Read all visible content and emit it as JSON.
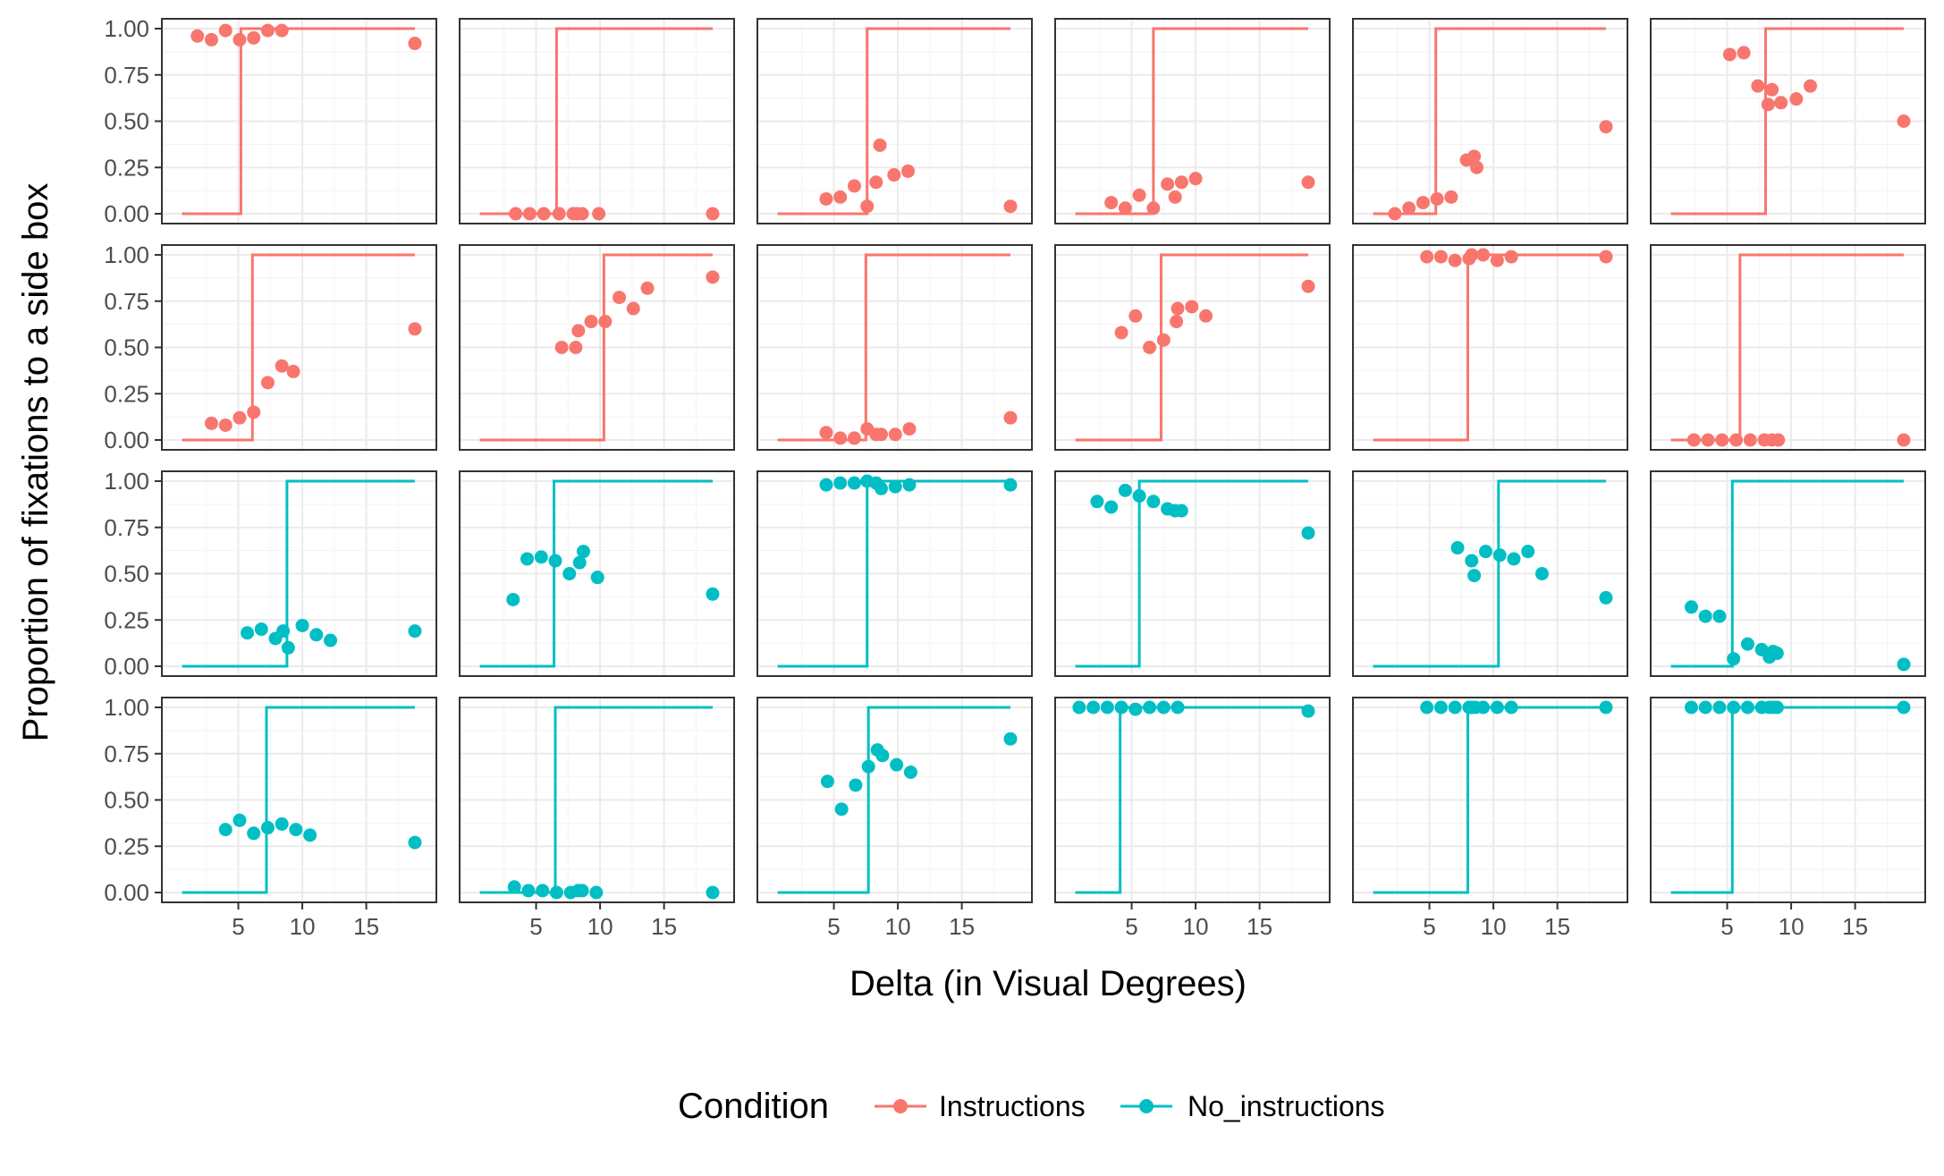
{
  "chart_data": {
    "type": "scatter",
    "layout": "facet grid, 4 rows x 6 columns",
    "xlabel": "Delta (in Visual Degrees)",
    "ylabel": "Proportion of fixations to a side box",
    "xticks": [
      5,
      10,
      15
    ],
    "xlim": [
      0,
      19.5
    ],
    "yticks": [
      "0.00",
      "0.25",
      "0.50",
      "0.75",
      "1.00"
    ],
    "ylim": [
      0,
      1
    ],
    "grid": true,
    "legend": {
      "title": "Condition",
      "position": "bottom",
      "items": [
        {
          "name": "Instructions",
          "color": "#F8766D"
        },
        {
          "name": "No_instructions",
          "color": "#00BFC4"
        }
      ]
    },
    "panels": [
      {
        "condition": "Instructions",
        "step_x": 5.2,
        "points": [
          [
            1.8,
            0.96
          ],
          [
            2.9,
            0.94
          ],
          [
            4.0,
            0.99
          ],
          [
            5.1,
            0.94
          ],
          [
            6.2,
            0.95
          ],
          [
            7.3,
            0.99
          ],
          [
            8.4,
            0.99
          ],
          [
            18.8,
            0.92
          ]
        ]
      },
      {
        "condition": "Instructions",
        "step_x": 6.6,
        "points": [
          [
            3.4,
            0.0
          ],
          [
            4.5,
            0.0
          ],
          [
            5.6,
            0.0
          ],
          [
            6.8,
            0.0
          ],
          [
            7.9,
            0.0
          ],
          [
            8.2,
            0.0
          ],
          [
            8.6,
            0.0
          ],
          [
            9.9,
            0.0
          ],
          [
            18.8,
            0.0
          ]
        ]
      },
      {
        "condition": "Instructions",
        "step_x": 7.6,
        "points": [
          [
            4.4,
            0.08
          ],
          [
            5.5,
            0.09
          ],
          [
            6.6,
            0.15
          ],
          [
            7.6,
            0.04
          ],
          [
            8.3,
            0.17
          ],
          [
            8.6,
            0.37
          ],
          [
            9.7,
            0.21
          ],
          [
            10.8,
            0.23
          ],
          [
            18.8,
            0.04
          ]
        ]
      },
      {
        "condition": "Instructions",
        "step_x": 6.7,
        "points": [
          [
            3.4,
            0.06
          ],
          [
            4.5,
            0.03
          ],
          [
            5.6,
            0.1
          ],
          [
            6.7,
            0.03
          ],
          [
            7.8,
            0.16
          ],
          [
            8.4,
            0.09
          ],
          [
            8.9,
            0.17
          ],
          [
            10.0,
            0.19
          ],
          [
            18.8,
            0.17
          ]
        ]
      },
      {
        "condition": "Instructions",
        "step_x": 5.5,
        "points": [
          [
            2.3,
            0.0
          ],
          [
            3.4,
            0.03
          ],
          [
            4.5,
            0.06
          ],
          [
            5.6,
            0.08
          ],
          [
            6.7,
            0.09
          ],
          [
            7.9,
            0.29
          ],
          [
            8.5,
            0.31
          ],
          [
            8.7,
            0.25
          ],
          [
            18.8,
            0.47
          ]
        ]
      },
      {
        "condition": "Instructions",
        "step_x": 8.0,
        "points": [
          [
            5.2,
            0.86
          ],
          [
            6.3,
            0.87
          ],
          [
            7.4,
            0.69
          ],
          [
            8.2,
            0.59
          ],
          [
            8.5,
            0.67
          ],
          [
            9.2,
            0.6
          ],
          [
            10.4,
            0.62
          ],
          [
            11.5,
            0.69
          ],
          [
            18.8,
            0.5
          ]
        ]
      },
      {
        "condition": "Instructions",
        "step_x": 6.1,
        "points": [
          [
            2.9,
            0.09
          ],
          [
            4.0,
            0.08
          ],
          [
            5.1,
            0.12
          ],
          [
            6.2,
            0.15
          ],
          [
            7.3,
            0.31
          ],
          [
            8.4,
            0.4
          ],
          [
            9.3,
            0.37
          ],
          [
            18.8,
            0.6
          ]
        ]
      },
      {
        "condition": "Instructions",
        "step_x": 10.3,
        "points": [
          [
            7.0,
            0.5
          ],
          [
            8.1,
            0.5
          ],
          [
            8.3,
            0.59
          ],
          [
            9.3,
            0.64
          ],
          [
            10.4,
            0.64
          ],
          [
            11.5,
            0.77
          ],
          [
            12.6,
            0.71
          ],
          [
            13.7,
            0.82
          ],
          [
            18.8,
            0.88
          ]
        ]
      },
      {
        "condition": "Instructions",
        "step_x": 7.5,
        "points": [
          [
            4.4,
            0.04
          ],
          [
            5.5,
            0.01
          ],
          [
            6.6,
            0.01
          ],
          [
            7.6,
            0.06
          ],
          [
            8.3,
            0.03
          ],
          [
            8.7,
            0.03
          ],
          [
            9.8,
            0.03
          ],
          [
            10.9,
            0.06
          ],
          [
            18.8,
            0.12
          ]
        ]
      },
      {
        "condition": "Instructions",
        "step_x": 7.3,
        "points": [
          [
            4.2,
            0.58
          ],
          [
            5.3,
            0.67
          ],
          [
            6.4,
            0.5
          ],
          [
            7.5,
            0.54
          ],
          [
            8.5,
            0.64
          ],
          [
            8.6,
            0.71
          ],
          [
            9.7,
            0.72
          ],
          [
            10.8,
            0.67
          ],
          [
            18.8,
            0.83
          ]
        ]
      },
      {
        "condition": "Instructions",
        "step_x": 8.0,
        "points": [
          [
            4.8,
            0.99
          ],
          [
            5.9,
            0.99
          ],
          [
            7.0,
            0.97
          ],
          [
            8.1,
            0.98
          ],
          [
            8.3,
            1.0
          ],
          [
            9.2,
            1.0
          ],
          [
            10.3,
            0.97
          ],
          [
            11.4,
            0.99
          ],
          [
            18.8,
            0.99
          ]
        ]
      },
      {
        "condition": "Instructions",
        "step_x": 6.0,
        "points": [
          [
            2.4,
            0.0
          ],
          [
            3.5,
            0.0
          ],
          [
            4.6,
            0.0
          ],
          [
            5.7,
            0.0
          ],
          [
            6.8,
            0.0
          ],
          [
            7.9,
            0.0
          ],
          [
            8.5,
            0.0
          ],
          [
            9.0,
            0.0
          ],
          [
            18.8,
            0.0
          ]
        ]
      },
      {
        "condition": "No_instructions",
        "step_x": 8.8,
        "points": [
          [
            5.7,
            0.18
          ],
          [
            6.8,
            0.2
          ],
          [
            7.9,
            0.15
          ],
          [
            8.5,
            0.19
          ],
          [
            8.9,
            0.1
          ],
          [
            10.0,
            0.22
          ],
          [
            11.1,
            0.17
          ],
          [
            12.2,
            0.14
          ],
          [
            18.8,
            0.19
          ]
        ]
      },
      {
        "condition": "No_instructions",
        "step_x": 6.4,
        "points": [
          [
            3.2,
            0.36
          ],
          [
            4.3,
            0.58
          ],
          [
            5.4,
            0.59
          ],
          [
            6.5,
            0.57
          ],
          [
            7.6,
            0.5
          ],
          [
            8.4,
            0.56
          ],
          [
            8.7,
            0.62
          ],
          [
            9.8,
            0.48
          ],
          [
            18.8,
            0.39
          ]
        ]
      },
      {
        "condition": "No_instructions",
        "step_x": 7.6,
        "points": [
          [
            4.4,
            0.98
          ],
          [
            5.5,
            0.99
          ],
          [
            6.6,
            0.99
          ],
          [
            7.6,
            1.0
          ],
          [
            8.3,
            0.99
          ],
          [
            8.7,
            0.96
          ],
          [
            9.8,
            0.97
          ],
          [
            10.9,
            0.98
          ],
          [
            18.8,
            0.98
          ]
        ]
      },
      {
        "condition": "No_instructions",
        "step_x": 5.6,
        "points": [
          [
            2.3,
            0.89
          ],
          [
            3.4,
            0.86
          ],
          [
            4.5,
            0.95
          ],
          [
            5.6,
            0.92
          ],
          [
            6.7,
            0.89
          ],
          [
            7.8,
            0.85
          ],
          [
            8.4,
            0.84
          ],
          [
            8.9,
            0.84
          ],
          [
            18.8,
            0.72
          ]
        ]
      },
      {
        "condition": "No_instructions",
        "step_x": 10.4,
        "points": [
          [
            7.2,
            0.64
          ],
          [
            8.3,
            0.57
          ],
          [
            8.5,
            0.49
          ],
          [
            9.4,
            0.62
          ],
          [
            10.5,
            0.6
          ],
          [
            11.6,
            0.58
          ],
          [
            12.7,
            0.62
          ],
          [
            13.8,
            0.5
          ],
          [
            18.8,
            0.37
          ]
        ]
      },
      {
        "condition": "No_instructions",
        "step_x": 5.4,
        "points": [
          [
            2.2,
            0.32
          ],
          [
            3.3,
            0.27
          ],
          [
            4.4,
            0.27
          ],
          [
            5.5,
            0.04
          ],
          [
            6.6,
            0.12
          ],
          [
            7.7,
            0.09
          ],
          [
            8.3,
            0.05
          ],
          [
            8.6,
            0.08
          ],
          [
            8.9,
            0.07
          ],
          [
            18.8,
            0.01
          ]
        ]
      },
      {
        "condition": "No_instructions",
        "step_x": 7.2,
        "points": [
          [
            4.0,
            0.34
          ],
          [
            5.1,
            0.39
          ],
          [
            6.2,
            0.32
          ],
          [
            7.3,
            0.35
          ],
          [
            8.4,
            0.37
          ],
          [
            9.5,
            0.34
          ],
          [
            10.6,
            0.31
          ],
          [
            18.8,
            0.27
          ]
        ]
      },
      {
        "condition": "No_instructions",
        "step_x": 6.5,
        "points": [
          [
            3.3,
            0.03
          ],
          [
            4.4,
            0.01
          ],
          [
            5.5,
            0.01
          ],
          [
            6.6,
            0.0
          ],
          [
            7.7,
            0.0
          ],
          [
            8.3,
            0.01
          ],
          [
            8.6,
            0.01
          ],
          [
            9.7,
            0.0
          ],
          [
            18.8,
            0.0
          ]
        ]
      },
      {
        "condition": "No_instructions",
        "step_x": 7.7,
        "points": [
          [
            4.5,
            0.6
          ],
          [
            5.6,
            0.45
          ],
          [
            6.7,
            0.58
          ],
          [
            7.7,
            0.68
          ],
          [
            8.4,
            0.77
          ],
          [
            8.8,
            0.74
          ],
          [
            9.9,
            0.69
          ],
          [
            11.0,
            0.65
          ],
          [
            18.8,
            0.83
          ]
        ]
      },
      {
        "condition": "No_instructions",
        "step_x": 4.1,
        "points": [
          [
            0.9,
            1.0
          ],
          [
            2.0,
            1.0
          ],
          [
            3.1,
            1.0
          ],
          [
            4.2,
            1.0
          ],
          [
            5.3,
            0.99
          ],
          [
            6.4,
            1.0
          ],
          [
            7.5,
            1.0
          ],
          [
            8.6,
            1.0
          ],
          [
            18.8,
            0.98
          ]
        ]
      },
      {
        "condition": "No_instructions",
        "step_x": 8.0,
        "points": [
          [
            4.8,
            1.0
          ],
          [
            5.9,
            1.0
          ],
          [
            7.0,
            1.0
          ],
          [
            8.1,
            1.0
          ],
          [
            8.3,
            1.0
          ],
          [
            8.6,
            1.0
          ],
          [
            9.2,
            1.0
          ],
          [
            10.3,
            1.0
          ],
          [
            11.4,
            1.0
          ],
          [
            18.8,
            1.0
          ]
        ]
      },
      {
        "condition": "No_instructions",
        "step_x": 5.4,
        "points": [
          [
            2.2,
            1.0
          ],
          [
            3.3,
            1.0
          ],
          [
            4.4,
            1.0
          ],
          [
            5.5,
            1.0
          ],
          [
            6.6,
            1.0
          ],
          [
            7.7,
            1.0
          ],
          [
            8.3,
            1.0
          ],
          [
            8.6,
            1.0
          ],
          [
            8.9,
            1.0
          ],
          [
            18.8,
            1.0
          ]
        ]
      }
    ]
  }
}
